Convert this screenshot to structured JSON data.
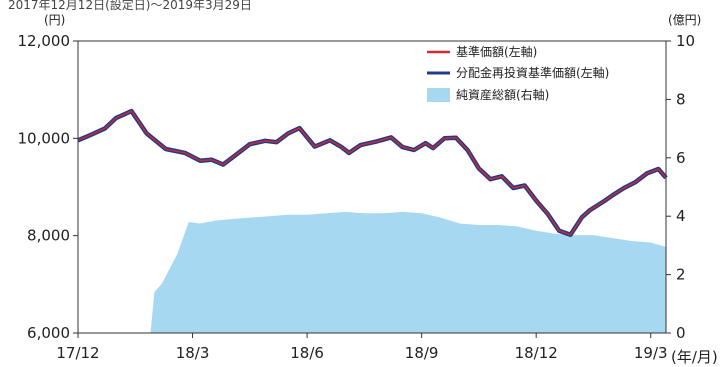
{
  "chart_data": {
    "type": "line",
    "header_text": "2017年12月12日(設定日)～2019年3月29日",
    "left_axis": {
      "unit": "(円)",
      "ylim": [
        6000,
        12000
      ],
      "ticks": [
        "6,000",
        "8,000",
        "10,000",
        "12,000"
      ]
    },
    "right_axis": {
      "unit": "(億円)",
      "ylim": [
        0,
        10
      ],
      "ticks": [
        "0",
        "2",
        "4",
        "6",
        "8",
        "10"
      ]
    },
    "x_axis": {
      "unit": "(年/月)",
      "categories": [
        "17/12",
        "18/3",
        "18/6",
        "18/9",
        "18/12",
        "19/3"
      ]
    },
    "legend": [
      {
        "label": "基準価額(左軸)",
        "color": "#d9282f"
      },
      {
        "label": "分配金再投資基準価額(左軸)",
        "color": "#1f3c88"
      },
      {
        "label": "純資産総額(右軸)",
        "color": "#a7d8f2"
      }
    ],
    "series": [
      {
        "name": "基準価額(左軸)",
        "axis": "left",
        "x": [
          0,
          0.3,
          0.7,
          1.0,
          1.4,
          1.8,
          2.3,
          2.8,
          3.2,
          3.5,
          3.8,
          4.1,
          4.5,
          4.9,
          5.2,
          5.5,
          5.8,
          6.2,
          6.6,
          6.9,
          7.1,
          7.4,
          7.8,
          8.2,
          8.5,
          8.8,
          9.1,
          9.3,
          9.6,
          9.9,
          10.2,
          10.5,
          10.8,
          11.1,
          11.4,
          11.7,
          12.0,
          12.3,
          12.6,
          12.9,
          13.2,
          13.4,
          13.6,
          13.8,
          14.0,
          14.3,
          14.6,
          14.9,
          15.2,
          15.4
        ],
        "y": [
          9960,
          10060,
          10200,
          10420,
          10560,
          10100,
          9780,
          9700,
          9540,
          9560,
          9460,
          9640,
          9880,
          9950,
          9920,
          10100,
          10210,
          9830,
          9960,
          9820,
          9700,
          9860,
          9930,
          10020,
          9820,
          9760,
          9900,
          9800,
          10000,
          10010,
          9760,
          9380,
          9160,
          9220,
          8980,
          9030,
          8720,
          8450,
          8100,
          8020,
          8380,
          8520,
          8620,
          8720,
          8830,
          8980,
          9100,
          9280,
          9370,
          9190
        ]
      },
      {
        "name": "分配金再投資基準価額(左軸)",
        "axis": "left",
        "x": [
          0,
          0.3,
          0.7,
          1.0,
          1.4,
          1.8,
          2.3,
          2.8,
          3.2,
          3.5,
          3.8,
          4.1,
          4.5,
          4.9,
          5.2,
          5.5,
          5.8,
          6.2,
          6.6,
          6.9,
          7.1,
          7.4,
          7.8,
          8.2,
          8.5,
          8.8,
          9.1,
          9.3,
          9.6,
          9.9,
          10.2,
          10.5,
          10.8,
          11.1,
          11.4,
          11.7,
          12.0,
          12.3,
          12.6,
          12.9,
          13.2,
          13.4,
          13.6,
          13.8,
          14.0,
          14.3,
          14.6,
          14.9,
          15.2,
          15.4
        ],
        "y": [
          9960,
          10060,
          10200,
          10420,
          10560,
          10100,
          9780,
          9700,
          9540,
          9560,
          9460,
          9640,
          9880,
          9950,
          9920,
          10100,
          10210,
          9830,
          9960,
          9820,
          9700,
          9860,
          9930,
          10020,
          9820,
          9760,
          9900,
          9800,
          10000,
          10010,
          9760,
          9380,
          9160,
          9220,
          8980,
          9030,
          8720,
          8450,
          8100,
          8020,
          8380,
          8520,
          8620,
          8720,
          8830,
          8980,
          9100,
          9280,
          9370,
          9190
        ]
      },
      {
        "name": "純資産総額(右軸)",
        "axis": "right",
        "x": [
          1.9,
          2.0,
          2.2,
          2.4,
          2.6,
          2.9,
          3.2,
          3.6,
          4.0,
          4.5,
          5.0,
          5.5,
          6.0,
          6.5,
          7.0,
          7.5,
          8.0,
          8.5,
          9.0,
          9.5,
          10.0,
          10.5,
          11.0,
          11.5,
          12.0,
          12.5,
          13.0,
          13.5,
          14.0,
          14.5,
          15.0,
          15.4
        ],
        "y": [
          0,
          1.4,
          1.7,
          2.2,
          2.7,
          3.8,
          3.75,
          3.85,
          3.9,
          3.95,
          4.0,
          4.05,
          4.05,
          4.1,
          4.15,
          4.1,
          4.1,
          4.15,
          4.1,
          3.95,
          3.75,
          3.7,
          3.7,
          3.65,
          3.5,
          3.4,
          3.35,
          3.35,
          3.25,
          3.15,
          3.1,
          2.95
        ]
      }
    ]
  }
}
